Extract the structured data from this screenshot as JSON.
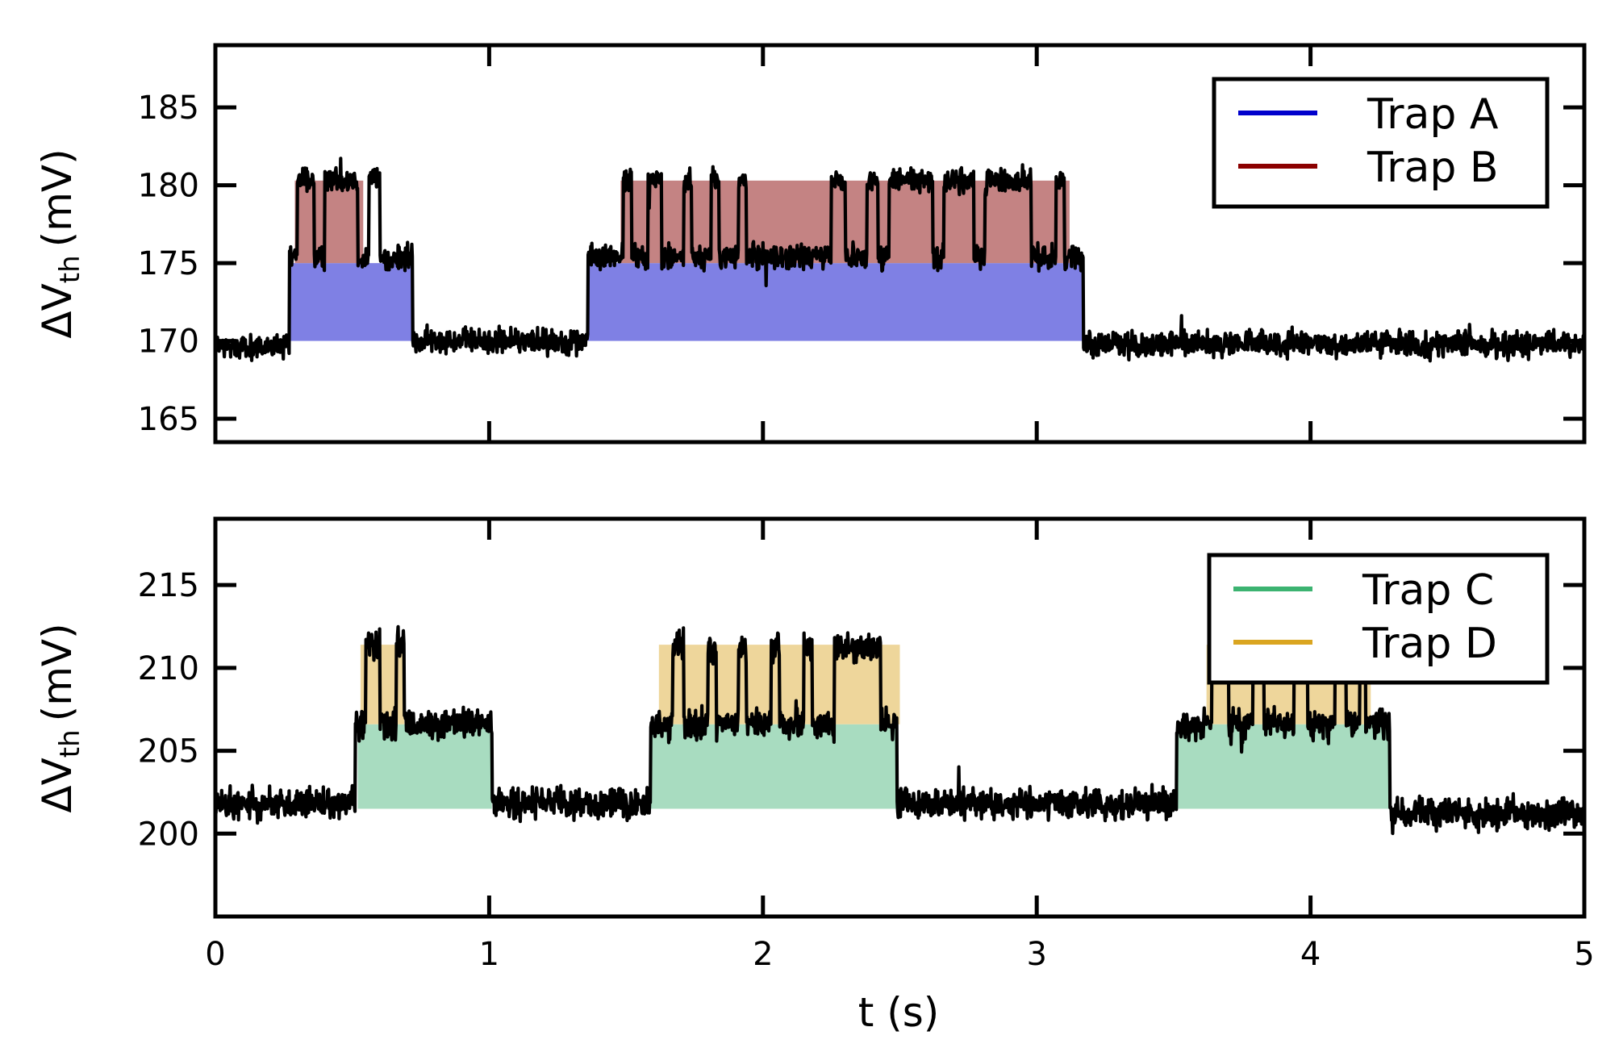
{
  "chart_data": [
    {
      "type": "line",
      "panel": "top",
      "ylabel": "ΔV",
      "ylabel_subscript": "th",
      "ylabel_units": "(mV)",
      "xlim": [
        0,
        5
      ],
      "ylim": [
        163.5,
        189
      ],
      "yticks": [
        165,
        170,
        175,
        180,
        185
      ],
      "xticks": [
        0,
        1,
        2,
        3,
        4,
        5
      ],
      "grid": false,
      "legend_position": "top-right",
      "legend": [
        {
          "label": "Trap A",
          "color": "#0000cc"
        },
        {
          "label": "Trap B",
          "color": "#8b0000"
        }
      ],
      "bands": [
        {
          "trap": "Trap A",
          "color": "#7f80e4",
          "y0": 170,
          "y1": 175,
          "intervals": [
            [
              0.27,
              0.72
            ],
            [
              1.36,
              3.17
            ]
          ]
        },
        {
          "trap": "Trap B",
          "color": "#c48383",
          "y0": 175,
          "y1": 180.3,
          "intervals": [
            [
              0.29,
              0.54
            ],
            [
              1.48,
              3.12
            ]
          ]
        }
      ],
      "signal": {
        "color": "#000000",
        "baseline": 169.8,
        "noise": 0.7,
        "segments": [
          {
            "x0": 0.0,
            "x1": 0.27,
            "level": 169.6
          },
          {
            "x0": 0.27,
            "x1": 0.72,
            "level": 175.3,
            "switch_level": 180.4,
            "switch_windows": [
              [
                0.3,
                0.36
              ],
              [
                0.4,
                0.52
              ],
              [
                0.56,
                0.6
              ]
            ]
          },
          {
            "x0": 0.72,
            "x1": 1.36,
            "level": 170.0
          },
          {
            "x0": 1.36,
            "x1": 3.17,
            "level": 175.4,
            "switch_level": 180.3,
            "switch_windows": [
              [
                1.49,
                1.52
              ],
              [
                1.58,
                1.63
              ],
              [
                1.71,
                1.74
              ],
              [
                1.81,
                1.84
              ],
              [
                1.91,
                1.94
              ],
              [
                2.25,
                2.3
              ],
              [
                2.38,
                2.42
              ],
              [
                2.46,
                2.62
              ],
              [
                2.66,
                2.77
              ],
              [
                2.81,
                2.98
              ],
              [
                3.07,
                3.1
              ]
            ]
          },
          {
            "x0": 3.17,
            "x1": 5.0,
            "level": 169.8
          }
        ]
      }
    },
    {
      "type": "line",
      "panel": "bottom",
      "xlabel": "t (s)",
      "ylabel": "ΔV",
      "ylabel_subscript": "th",
      "ylabel_units": "(mV)",
      "xlim": [
        0,
        5
      ],
      "ylim": [
        195,
        219
      ],
      "yticks": [
        200,
        205,
        210,
        215
      ],
      "xticks": [
        0,
        1,
        2,
        3,
        4,
        5
      ],
      "grid": false,
      "legend_position": "top-right",
      "legend": [
        {
          "label": "Trap C",
          "color": "#3cb371"
        },
        {
          "label": "Trap D",
          "color": "#daa520"
        }
      ],
      "bands": [
        {
          "trap": "Trap C",
          "color": "#a8dcc0",
          "y0": 201.5,
          "y1": 206.6,
          "intervals": [
            [
              0.52,
              1.01
            ],
            [
              1.59,
              2.49
            ],
            [
              3.51,
              4.29
            ]
          ]
        },
        {
          "trap": "Trap D",
          "color": "#eed69b",
          "y0": 206.6,
          "y1": 211.4,
          "intervals": [
            [
              0.53,
              0.69
            ],
            [
              1.62,
              2.5
            ],
            [
              3.62,
              4.22
            ]
          ]
        }
      ],
      "signal": {
        "color": "#000000",
        "baseline": 201.8,
        "noise": 0.8,
        "segments": [
          {
            "x0": 0.0,
            "x1": 0.51,
            "level": 201.8
          },
          {
            "x0": 0.51,
            "x1": 1.01,
            "level": 206.6,
            "switch_level": 211.3,
            "switch_windows": [
              [
                0.55,
                0.6
              ],
              [
                0.66,
                0.69
              ]
            ]
          },
          {
            "x0": 1.01,
            "x1": 1.59,
            "level": 201.8
          },
          {
            "x0": 1.59,
            "x1": 2.49,
            "level": 206.6,
            "switch_level": 211.3,
            "switch_windows": [
              [
                1.67,
                1.71
              ],
              [
                1.8,
                1.83
              ],
              [
                1.91,
                1.94
              ],
              [
                2.03,
                2.06
              ],
              [
                2.15,
                2.18
              ],
              [
                2.26,
                2.43
              ]
            ]
          },
          {
            "x0": 2.49,
            "x1": 3.51,
            "level": 201.8
          },
          {
            "x0": 3.51,
            "x1": 4.29,
            "level": 206.6,
            "switch_level": 211.3,
            "switch_windows": [
              [
                3.64,
                3.7
              ],
              [
                3.79,
                3.83
              ],
              [
                3.94,
                3.99
              ],
              [
                4.09,
                4.13
              ],
              [
                4.18,
                4.2
              ]
            ]
          },
          {
            "x0": 4.29,
            "x1": 5.0,
            "level": 201.2
          }
        ]
      }
    }
  ]
}
